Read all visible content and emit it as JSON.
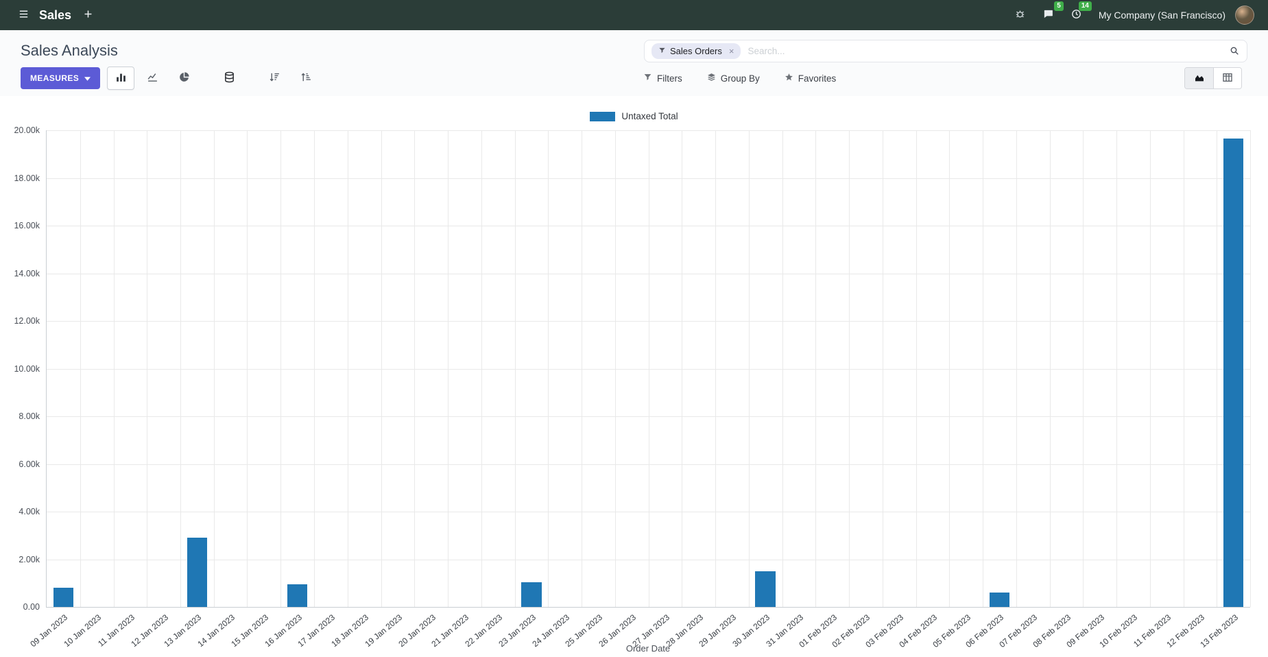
{
  "navbar": {
    "app_name": "Sales",
    "company": "My Company (San Francisco)",
    "message_badge": "5",
    "activity_badge": "14"
  },
  "control_panel": {
    "title": "Sales Analysis",
    "measures_button": "MEASURES",
    "filters_button": "Filters",
    "group_by_button": "Group By",
    "favorites_button": "Favorites",
    "search": {
      "facet_label": "Sales Orders",
      "facet_remove": "×",
      "placeholder": "Search..."
    }
  },
  "chart_data": {
    "type": "bar",
    "title": "",
    "xlabel": "Order Date",
    "ylabel": "",
    "ylim": [
      0,
      20000
    ],
    "grid": true,
    "legend_position": "top",
    "bar_color": "#1f77b4",
    "ytick_labels": [
      "0.00",
      "2.00k",
      "4.00k",
      "6.00k",
      "8.00k",
      "10.00k",
      "12.00k",
      "14.00k",
      "16.00k",
      "18.00k",
      "20.00k"
    ],
    "categories": [
      "09 Jan 2023",
      "10 Jan 2023",
      "11 Jan 2023",
      "12 Jan 2023",
      "13 Jan 2023",
      "14 Jan 2023",
      "15 Jan 2023",
      "16 Jan 2023",
      "17 Jan 2023",
      "18 Jan 2023",
      "19 Jan 2023",
      "20 Jan 2023",
      "21 Jan 2023",
      "22 Jan 2023",
      "23 Jan 2023",
      "24 Jan 2023",
      "25 Jan 2023",
      "26 Jan 2023",
      "27 Jan 2023",
      "28 Jan 2023",
      "29 Jan 2023",
      "30 Jan 2023",
      "31 Jan 2023",
      "01 Feb 2023",
      "02 Feb 2023",
      "03 Feb 2023",
      "04 Feb 2023",
      "05 Feb 2023",
      "06 Feb 2023",
      "07 Feb 2023",
      "08 Feb 2023",
      "09 Feb 2023",
      "10 Feb 2023",
      "11 Feb 2023",
      "12 Feb 2023",
      "13 Feb 2023"
    ],
    "series": [
      {
        "name": "Untaxed Total",
        "values": [
          800,
          0,
          0,
          0,
          2900,
          0,
          0,
          950,
          0,
          0,
          0,
          0,
          0,
          0,
          1050,
          0,
          0,
          0,
          0,
          0,
          0,
          1500,
          0,
          0,
          0,
          0,
          0,
          0,
          600,
          0,
          0,
          0,
          0,
          0,
          0,
          19650
        ]
      }
    ]
  }
}
